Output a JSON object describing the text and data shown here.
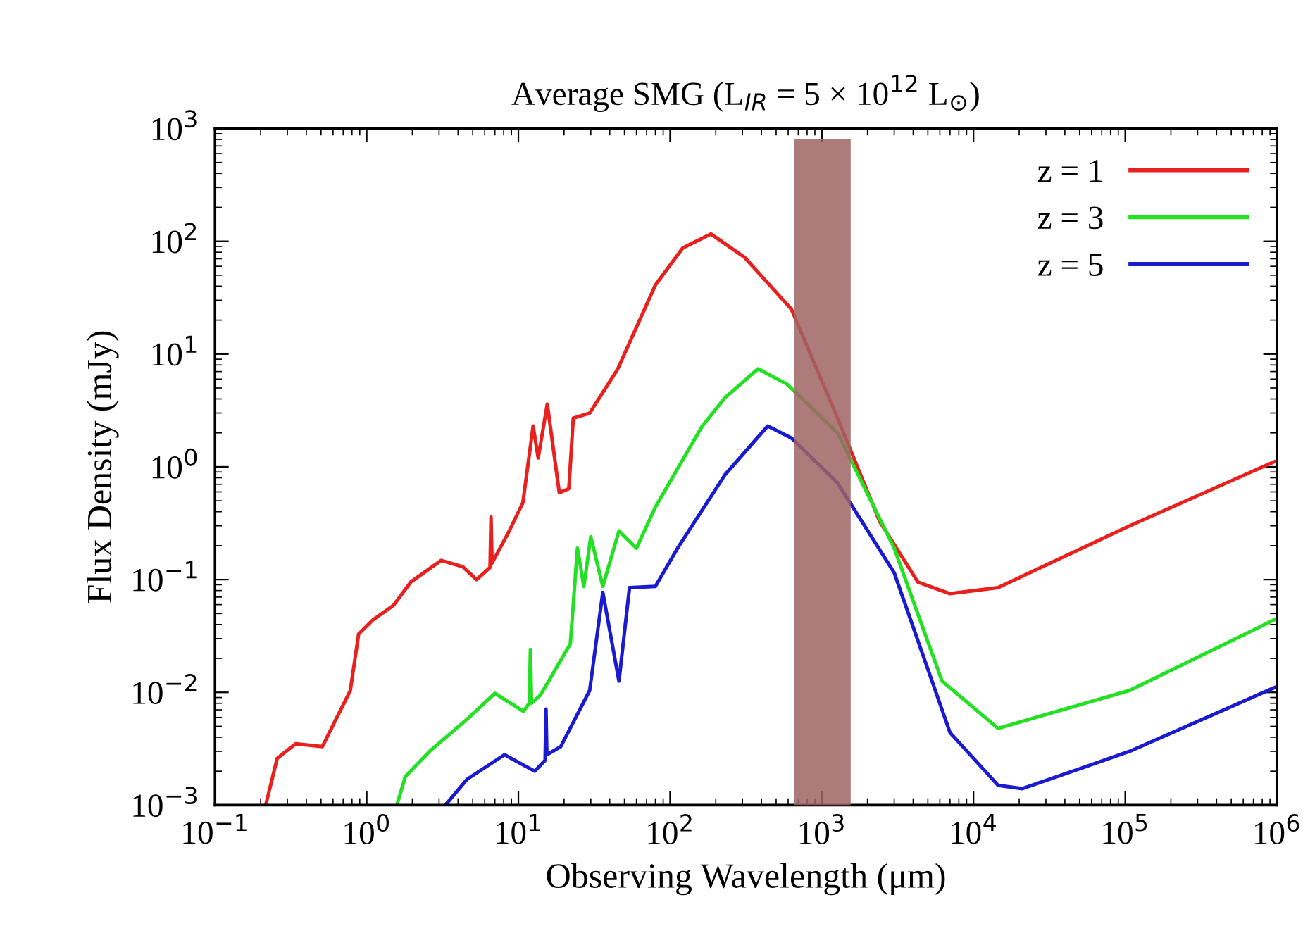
{
  "chart_data": {
    "type": "line",
    "title": "Average SMG (L$_{IR}$ = 5 × 10$^{12}$ L$_{⊙}$)",
    "xlabel": "Observing Wavelength (μm)",
    "ylabel": "Flux Density (mJy)",
    "log": "xy",
    "grid": false,
    "legend": "top right",
    "line_style": "solid",
    "xlim": [
      0.1,
      1000000
    ],
    "ylim": [
      0.001,
      1000
    ],
    "xticks": [
      {
        "value": 0.1,
        "label": "10$^{−1}$"
      },
      {
        "value": 1,
        "label": "10$^{0}$"
      },
      {
        "value": 10,
        "label": "10$^{1}$"
      },
      {
        "value": 100,
        "label": "10$^{2}$"
      },
      {
        "value": 1000,
        "label": "10$^{3}$"
      },
      {
        "value": 10000,
        "label": "10$^{4}$"
      },
      {
        "value": 100000,
        "label": "10$^{5}$"
      },
      {
        "value": 1000000,
        "label": "10$^{6}$"
      }
    ],
    "yticks": [
      {
        "value": 0.001,
        "label": "10$^{−3}$"
      },
      {
        "value": 0.01,
        "label": "10$^{−2}$"
      },
      {
        "value": 0.1,
        "label": "10$^{−1}$"
      },
      {
        "value": 1,
        "label": "10$^{0}$"
      },
      {
        "value": 10,
        "label": "10$^{1}$"
      },
      {
        "value": 100,
        "label": "10$^{2}$"
      },
      {
        "value": 1000,
        "label": "10$^{3}$"
      }
    ],
    "bands": [
      {
        "axis": "x",
        "from": 660,
        "to": 1550,
        "color": "#a06464"
      }
    ],
    "series": [
      {
        "name": "z = 1",
        "color": "#e8201e",
        "x": [
          0.216,
          0.257,
          0.34,
          0.51,
          0.78,
          0.885,
          1.1,
          1.5,
          1.95,
          3.1,
          4.3,
          5.3,
          6.5,
          6.6,
          6.7,
          8.7,
          10.7,
          12.5,
          13.5,
          15.5,
          18.6,
          21.5,
          23,
          29.5,
          45,
          80,
          121,
          186,
          310,
          630,
          1270,
          2400,
          4300,
          7000,
          14500,
          107000,
          960000
        ],
        "values": [
          0.001,
          0.0026,
          0.0035,
          0.0033,
          0.0104,
          0.033,
          0.044,
          0.059,
          0.095,
          0.148,
          0.13,
          0.1,
          0.128,
          0.36,
          0.14,
          0.27,
          0.48,
          2.3,
          1.2,
          3.6,
          0.59,
          0.64,
          2.7,
          3.0,
          7.3,
          41,
          87,
          116,
          72,
          25,
          2.7,
          0.33,
          0.095,
          0.075,
          0.085,
          0.3,
          1.11
        ]
      },
      {
        "name": "z = 3",
        "color": "#22e022",
        "x": [
          1.58,
          1.8,
          2.6,
          4.6,
          7.0,
          10.8,
          11.8,
          12,
          12.2,
          14,
          22,
          24.5,
          27,
          30,
          36,
          46,
          60,
          80,
          163,
          230,
          380,
          590,
          1270,
          3000,
          6200,
          14500,
          107000,
          960000
        ],
        "values": [
          0.001,
          0.0018,
          0.003,
          0.0058,
          0.0098,
          0.0068,
          0.008,
          0.024,
          0.008,
          0.0095,
          0.027,
          0.19,
          0.087,
          0.24,
          0.087,
          0.27,
          0.19,
          0.44,
          2.3,
          4.1,
          7.4,
          5.4,
          2.0,
          0.19,
          0.0126,
          0.0048,
          0.0104,
          0.044
        ]
      },
      {
        "name": "z = 5",
        "color": "#1a1ad0",
        "x": [
          3.3,
          4.6,
          8.1,
          12.8,
          15,
          15.2,
          15.4,
          19,
          29.5,
          36,
          46,
          54,
          80,
          112,
          230,
          440,
          630,
          1270,
          3000,
          7000,
          14500,
          21000,
          107000,
          960000
        ],
        "values": [
          0.001,
          0.0017,
          0.0028,
          0.002,
          0.0025,
          0.0071,
          0.0028,
          0.0033,
          0.0104,
          0.077,
          0.0126,
          0.085,
          0.087,
          0.19,
          0.85,
          2.3,
          1.8,
          0.72,
          0.115,
          0.0044,
          0.0015,
          0.0014,
          0.003,
          0.011
        ]
      }
    ]
  }
}
